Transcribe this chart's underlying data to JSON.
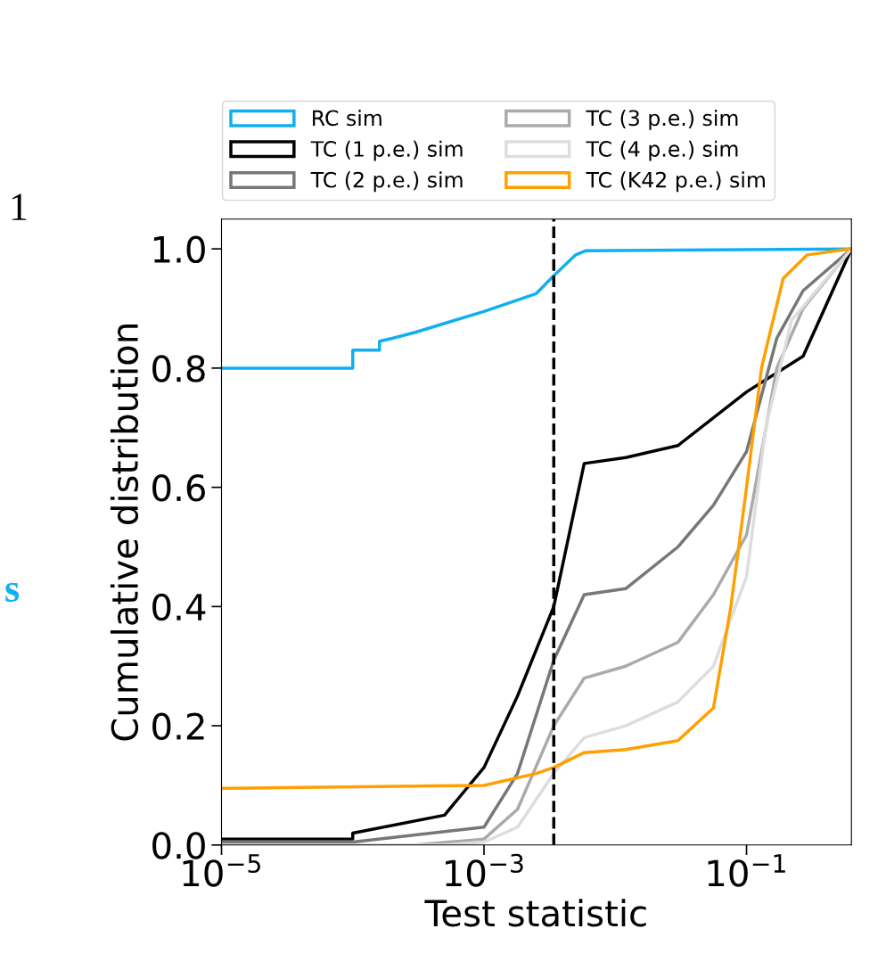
{
  "chart_data": {
    "type": "line",
    "xlabel": "Test statistic",
    "ylabel": "Cumulative distribution",
    "log": "x",
    "xlim": [
      1e-05,
      0.63
    ],
    "ylim": [
      0,
      1.05
    ],
    "xticks": [
      {
        "value": 1e-05,
        "label": "10$^{−5}$"
      },
      {
        "value": 0.001,
        "label": "10$^{−3}$"
      },
      {
        "value": 0.1,
        "label": "10$^{−1}$"
      }
    ],
    "yticks": [
      {
        "value": 0,
        "label": "0.0"
      },
      {
        "value": 0.2,
        "label": "0.2"
      },
      {
        "value": 0.4,
        "label": "0.4"
      },
      {
        "value": 0.6,
        "label": "0.6"
      },
      {
        "value": 0.8,
        "label": "0.8"
      },
      {
        "value": 1,
        "label": "1.0"
      }
    ],
    "grid": false,
    "legend": "top",
    "marker": "none",
    "line_style": "solid",
    "ref_lines": [
      {
        "axis": "x",
        "value": 0.0034,
        "color": "#000000",
        "line_style": "dashed"
      }
    ],
    "annotations": [
      "1",
      "s"
    ],
    "series": [
      {
        "name": "RC sim",
        "color": "#10b0f0",
        "x": [
          1e-05,
          0.0001,
          0.0001,
          0.00016,
          0.00016,
          0.0002,
          0.0003,
          0.0005,
          0.001,
          0.0025,
          0.0034,
          0.005,
          0.006,
          0.63
        ],
        "values": [
          0.8,
          0.8,
          0.83,
          0.83,
          0.845,
          0.85,
          0.86,
          0.875,
          0.895,
          0.925,
          0.955,
          0.99,
          0.997,
          1.0
        ]
      },
      {
        "name": "TC (1 p.e.) sim",
        "color": "#000000",
        "x": [
          1e-05,
          0.0001,
          0.0001,
          0.0005,
          0.001,
          0.0018,
          0.0034,
          0.0058,
          0.012,
          0.03,
          0.1,
          0.27,
          0.63
        ],
        "values": [
          0.01,
          0.01,
          0.02,
          0.05,
          0.13,
          0.25,
          0.4,
          0.64,
          0.65,
          0.67,
          0.76,
          0.82,
          1.0
        ]
      },
      {
        "name": "TC (2 p.e.) sim",
        "color": "#777777",
        "x": [
          1e-05,
          0.0001,
          0.001,
          0.0018,
          0.0034,
          0.0058,
          0.012,
          0.03,
          0.056,
          0.1,
          0.17,
          0.27,
          0.63
        ],
        "values": [
          0.005,
          0.005,
          0.03,
          0.12,
          0.31,
          0.42,
          0.43,
          0.5,
          0.57,
          0.66,
          0.85,
          0.93,
          1.0
        ]
      },
      {
        "name": "TC (3 p.e.) sim",
        "color": "#aaaaaa",
        "x": [
          1e-05,
          0.0003,
          0.001,
          0.0018,
          0.0034,
          0.0058,
          0.012,
          0.03,
          0.056,
          0.1,
          0.17,
          0.27,
          0.63
        ],
        "values": [
          0.0,
          0.0,
          0.01,
          0.06,
          0.2,
          0.28,
          0.3,
          0.34,
          0.42,
          0.52,
          0.8,
          0.9,
          1.0
        ]
      },
      {
        "name": "TC (4 p.e.) sim",
        "color": "#dddddd",
        "x": [
          1e-05,
          0.0005,
          0.001,
          0.0018,
          0.0034,
          0.0058,
          0.012,
          0.03,
          0.056,
          0.1,
          0.14,
          0.22,
          0.63
        ],
        "values": [
          0.0,
          0.0,
          0.005,
          0.03,
          0.12,
          0.18,
          0.2,
          0.24,
          0.3,
          0.45,
          0.7,
          0.88,
          1.0
        ]
      },
      {
        "name": "TC (K42 p.e.) sim",
        "color": "#ffa000",
        "x": [
          1e-05,
          0.001,
          0.0025,
          0.0034,
          0.0058,
          0.012,
          0.03,
          0.056,
          0.076,
          0.1,
          0.13,
          0.19,
          0.29,
          0.63
        ],
        "values": [
          0.095,
          0.1,
          0.12,
          0.13,
          0.155,
          0.16,
          0.175,
          0.23,
          0.4,
          0.6,
          0.8,
          0.95,
          0.99,
          1.0
        ]
      }
    ]
  }
}
